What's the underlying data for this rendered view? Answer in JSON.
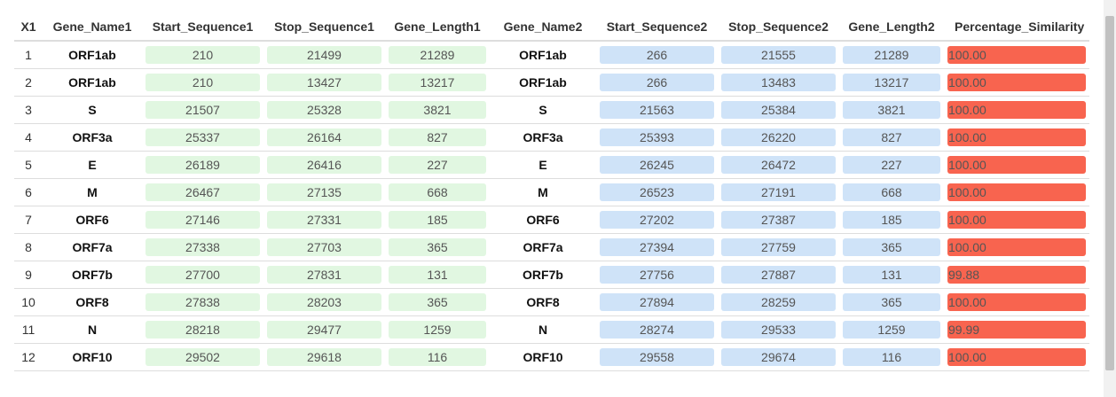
{
  "columns": [
    "X1",
    "Gene_Name1",
    "Start_Sequence1",
    "Stop_Sequence1",
    "Gene_Length1",
    "Gene_Name2",
    "Start_Sequence2",
    "Stop_Sequence2",
    "Gene_Length2",
    "Percentage_Similarity"
  ],
  "rows": [
    [
      "1",
      "ORF1ab",
      "210",
      "21499",
      "21289",
      "ORF1ab",
      "266",
      "21555",
      "21289",
      "100.00"
    ],
    [
      "2",
      "ORF1ab",
      "210",
      "13427",
      "13217",
      "ORF1ab",
      "266",
      "13483",
      "13217",
      "100.00"
    ],
    [
      "3",
      "S",
      "21507",
      "25328",
      "3821",
      "S",
      "21563",
      "25384",
      "3821",
      "100.00"
    ],
    [
      "4",
      "ORF3a",
      "25337",
      "26164",
      "827",
      "ORF3a",
      "25393",
      "26220",
      "827",
      "100.00"
    ],
    [
      "5",
      "E",
      "26189",
      "26416",
      "227",
      "E",
      "26245",
      "26472",
      "227",
      "100.00"
    ],
    [
      "6",
      "M",
      "26467",
      "27135",
      "668",
      "M",
      "26523",
      "27191",
      "668",
      "100.00"
    ],
    [
      "7",
      "ORF6",
      "27146",
      "27331",
      "185",
      "ORF6",
      "27202",
      "27387",
      "185",
      "100.00"
    ],
    [
      "8",
      "ORF7a",
      "27338",
      "27703",
      "365",
      "ORF7a",
      "27394",
      "27759",
      "365",
      "100.00"
    ],
    [
      "9",
      "ORF7b",
      "27700",
      "27831",
      "131",
      "ORF7b",
      "27756",
      "27887",
      "131",
      "99.88"
    ],
    [
      "10",
      "ORF8",
      "27838",
      "28203",
      "365",
      "ORF8",
      "27894",
      "28259",
      "365",
      "100.00"
    ],
    [
      "11",
      "N",
      "28218",
      "29477",
      "1259",
      "N",
      "28274",
      "29533",
      "1259",
      "99.99"
    ],
    [
      "12",
      "ORF10",
      "29502",
      "29618",
      "116",
      "ORF10",
      "29558",
      "29674",
      "116",
      "100.00"
    ]
  ],
  "colors": {
    "seq1_bar": "#e1f7e1",
    "seq2_bar": "#cfe3f8",
    "similarity_bar": "#f8644f"
  }
}
